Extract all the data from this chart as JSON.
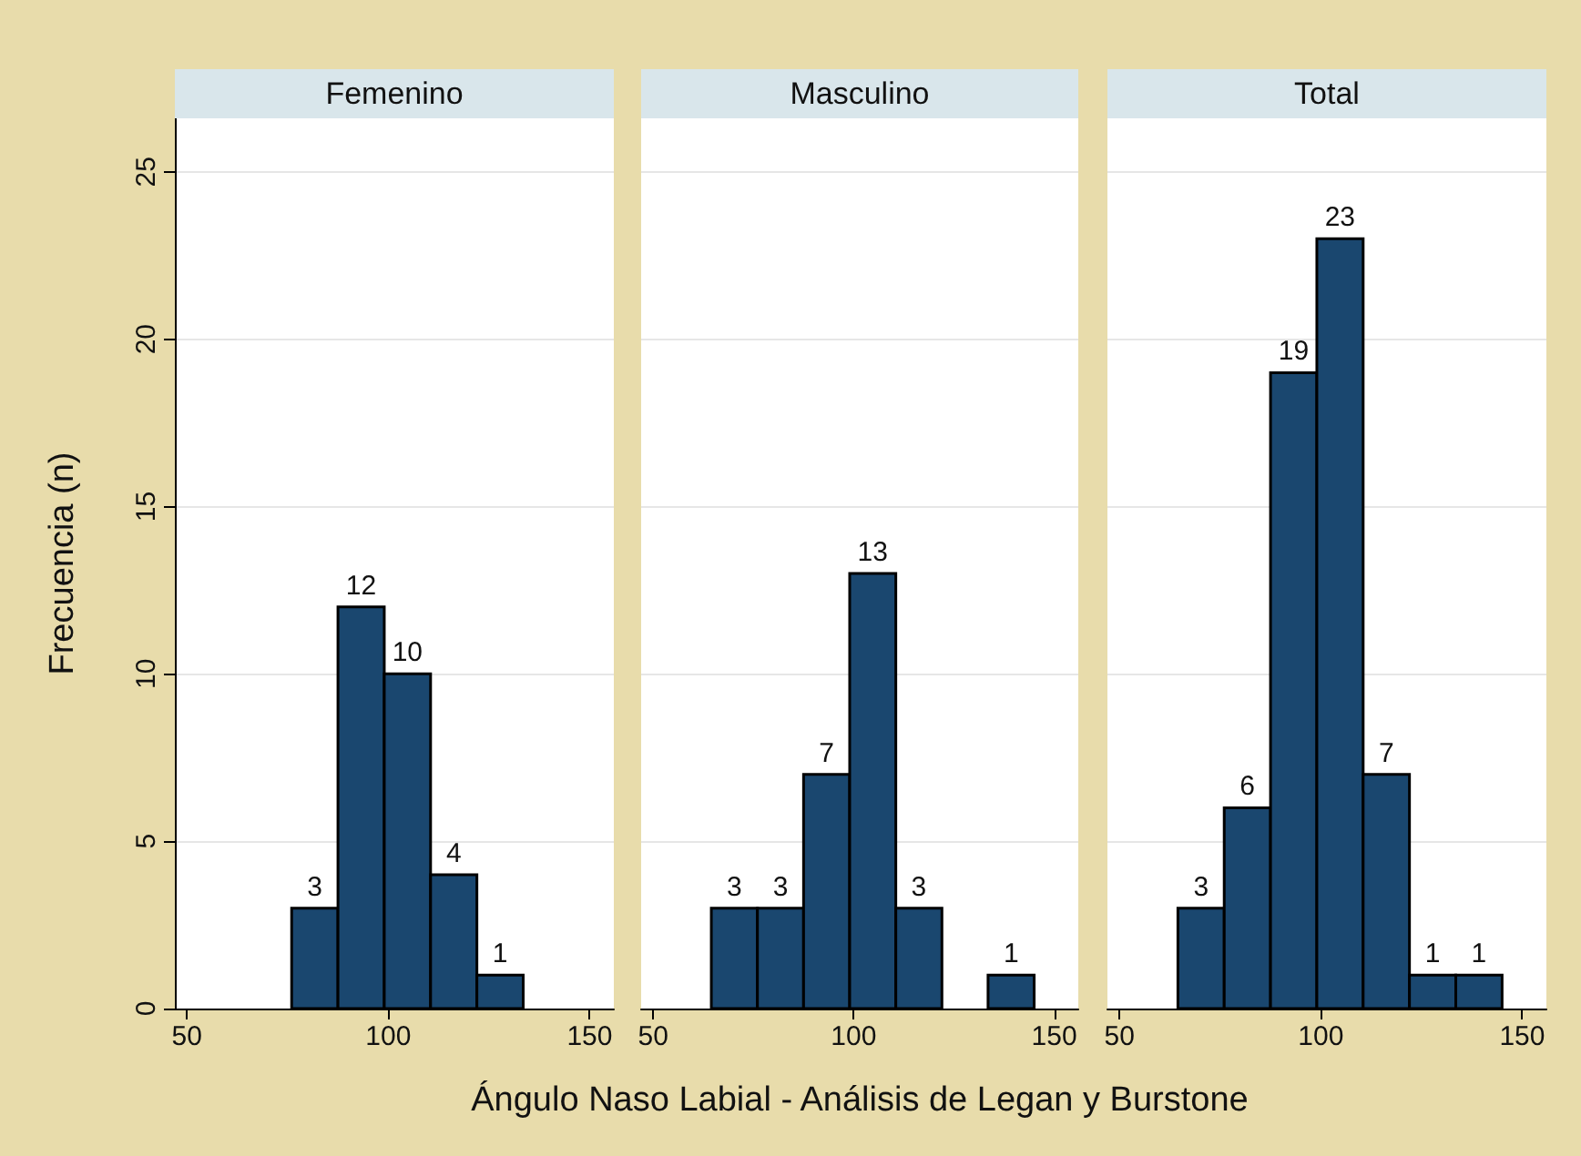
{
  "chart_data": [
    {
      "type": "histogram",
      "title": "Femenino",
      "ylabel": "Frecuencia (n)",
      "bins": [
        76,
        87.5,
        99,
        110.5,
        122,
        133.5
      ],
      "values": [
        3,
        12,
        10,
        4,
        1
      ],
      "color": "#1a476f",
      "data_labels": true,
      "xlim": [
        47,
        156
      ],
      "xticks": [
        50,
        100,
        150
      ],
      "ylim": [
        0,
        26.6
      ],
      "yticks": [
        0,
        5,
        10,
        15,
        20,
        25
      ],
      "grid": "y"
    },
    {
      "type": "histogram",
      "title": "Masculino",
      "xlabel": "Ángulo Naso Labial - Análisis de Legan y Burstone",
      "bins": [
        64.5,
        76,
        87.5,
        99,
        110.5,
        122,
        133.5,
        145
      ],
      "values": [
        3,
        3,
        7,
        13,
        3,
        0,
        1
      ],
      "value_labels": [
        "3",
        "3",
        "7",
        "13",
        "3",
        null,
        "1"
      ],
      "color": "#1a476f",
      "xlim": [
        47,
        156
      ],
      "xticks": [
        50,
        100,
        150
      ],
      "ylim": [
        0,
        26.6
      ],
      "yticks": [
        0,
        5,
        10,
        15,
        20,
        25
      ],
      "grid": "y",
      "tick_labels": "x"
    },
    {
      "type": "histogram",
      "title": "Total",
      "bins": [
        64.5,
        76,
        87.5,
        99,
        110.5,
        122,
        133.5,
        145
      ],
      "values": [
        3,
        6,
        19,
        23,
        7,
        1,
        1
      ],
      "color": "#1a476f",
      "data_labels": true,
      "xlim": [
        47,
        156
      ],
      "xticks": [
        50,
        100,
        150
      ],
      "ylim": [
        0,
        26.6
      ],
      "yticks": [
        0,
        5,
        10,
        15,
        20,
        25
      ],
      "grid": "y",
      "tick_labels": "x"
    }
  ]
}
